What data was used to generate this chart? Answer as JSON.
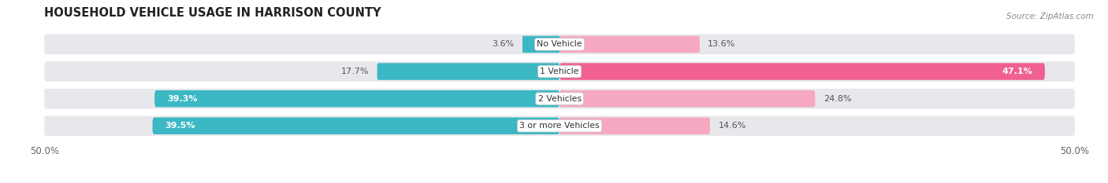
{
  "title": "HOUSEHOLD VEHICLE USAGE IN HARRISON COUNTY",
  "source": "Source: ZipAtlas.com",
  "categories": [
    "No Vehicle",
    "1 Vehicle",
    "2 Vehicles",
    "3 or more Vehicles"
  ],
  "owner_values": [
    3.6,
    17.7,
    39.3,
    39.5
  ],
  "renter_values": [
    13.6,
    47.1,
    24.8,
    14.6
  ],
  "owner_color": "#3bb8c3",
  "renter_color_normal": "#f5a8c0",
  "renter_color_highlight": "#f06090",
  "renter_highlight_index": 1,
  "background_color": "#ffffff",
  "bar_bg_color": "#e8e8ec",
  "xlim": [
    -50,
    50
  ],
  "xticklabels": [
    "50.0%",
    "50.0%"
  ],
  "title_fontsize": 10.5,
  "bar_height": 0.62,
  "figsize": [
    14.06,
    2.33
  ],
  "dpi": 100
}
